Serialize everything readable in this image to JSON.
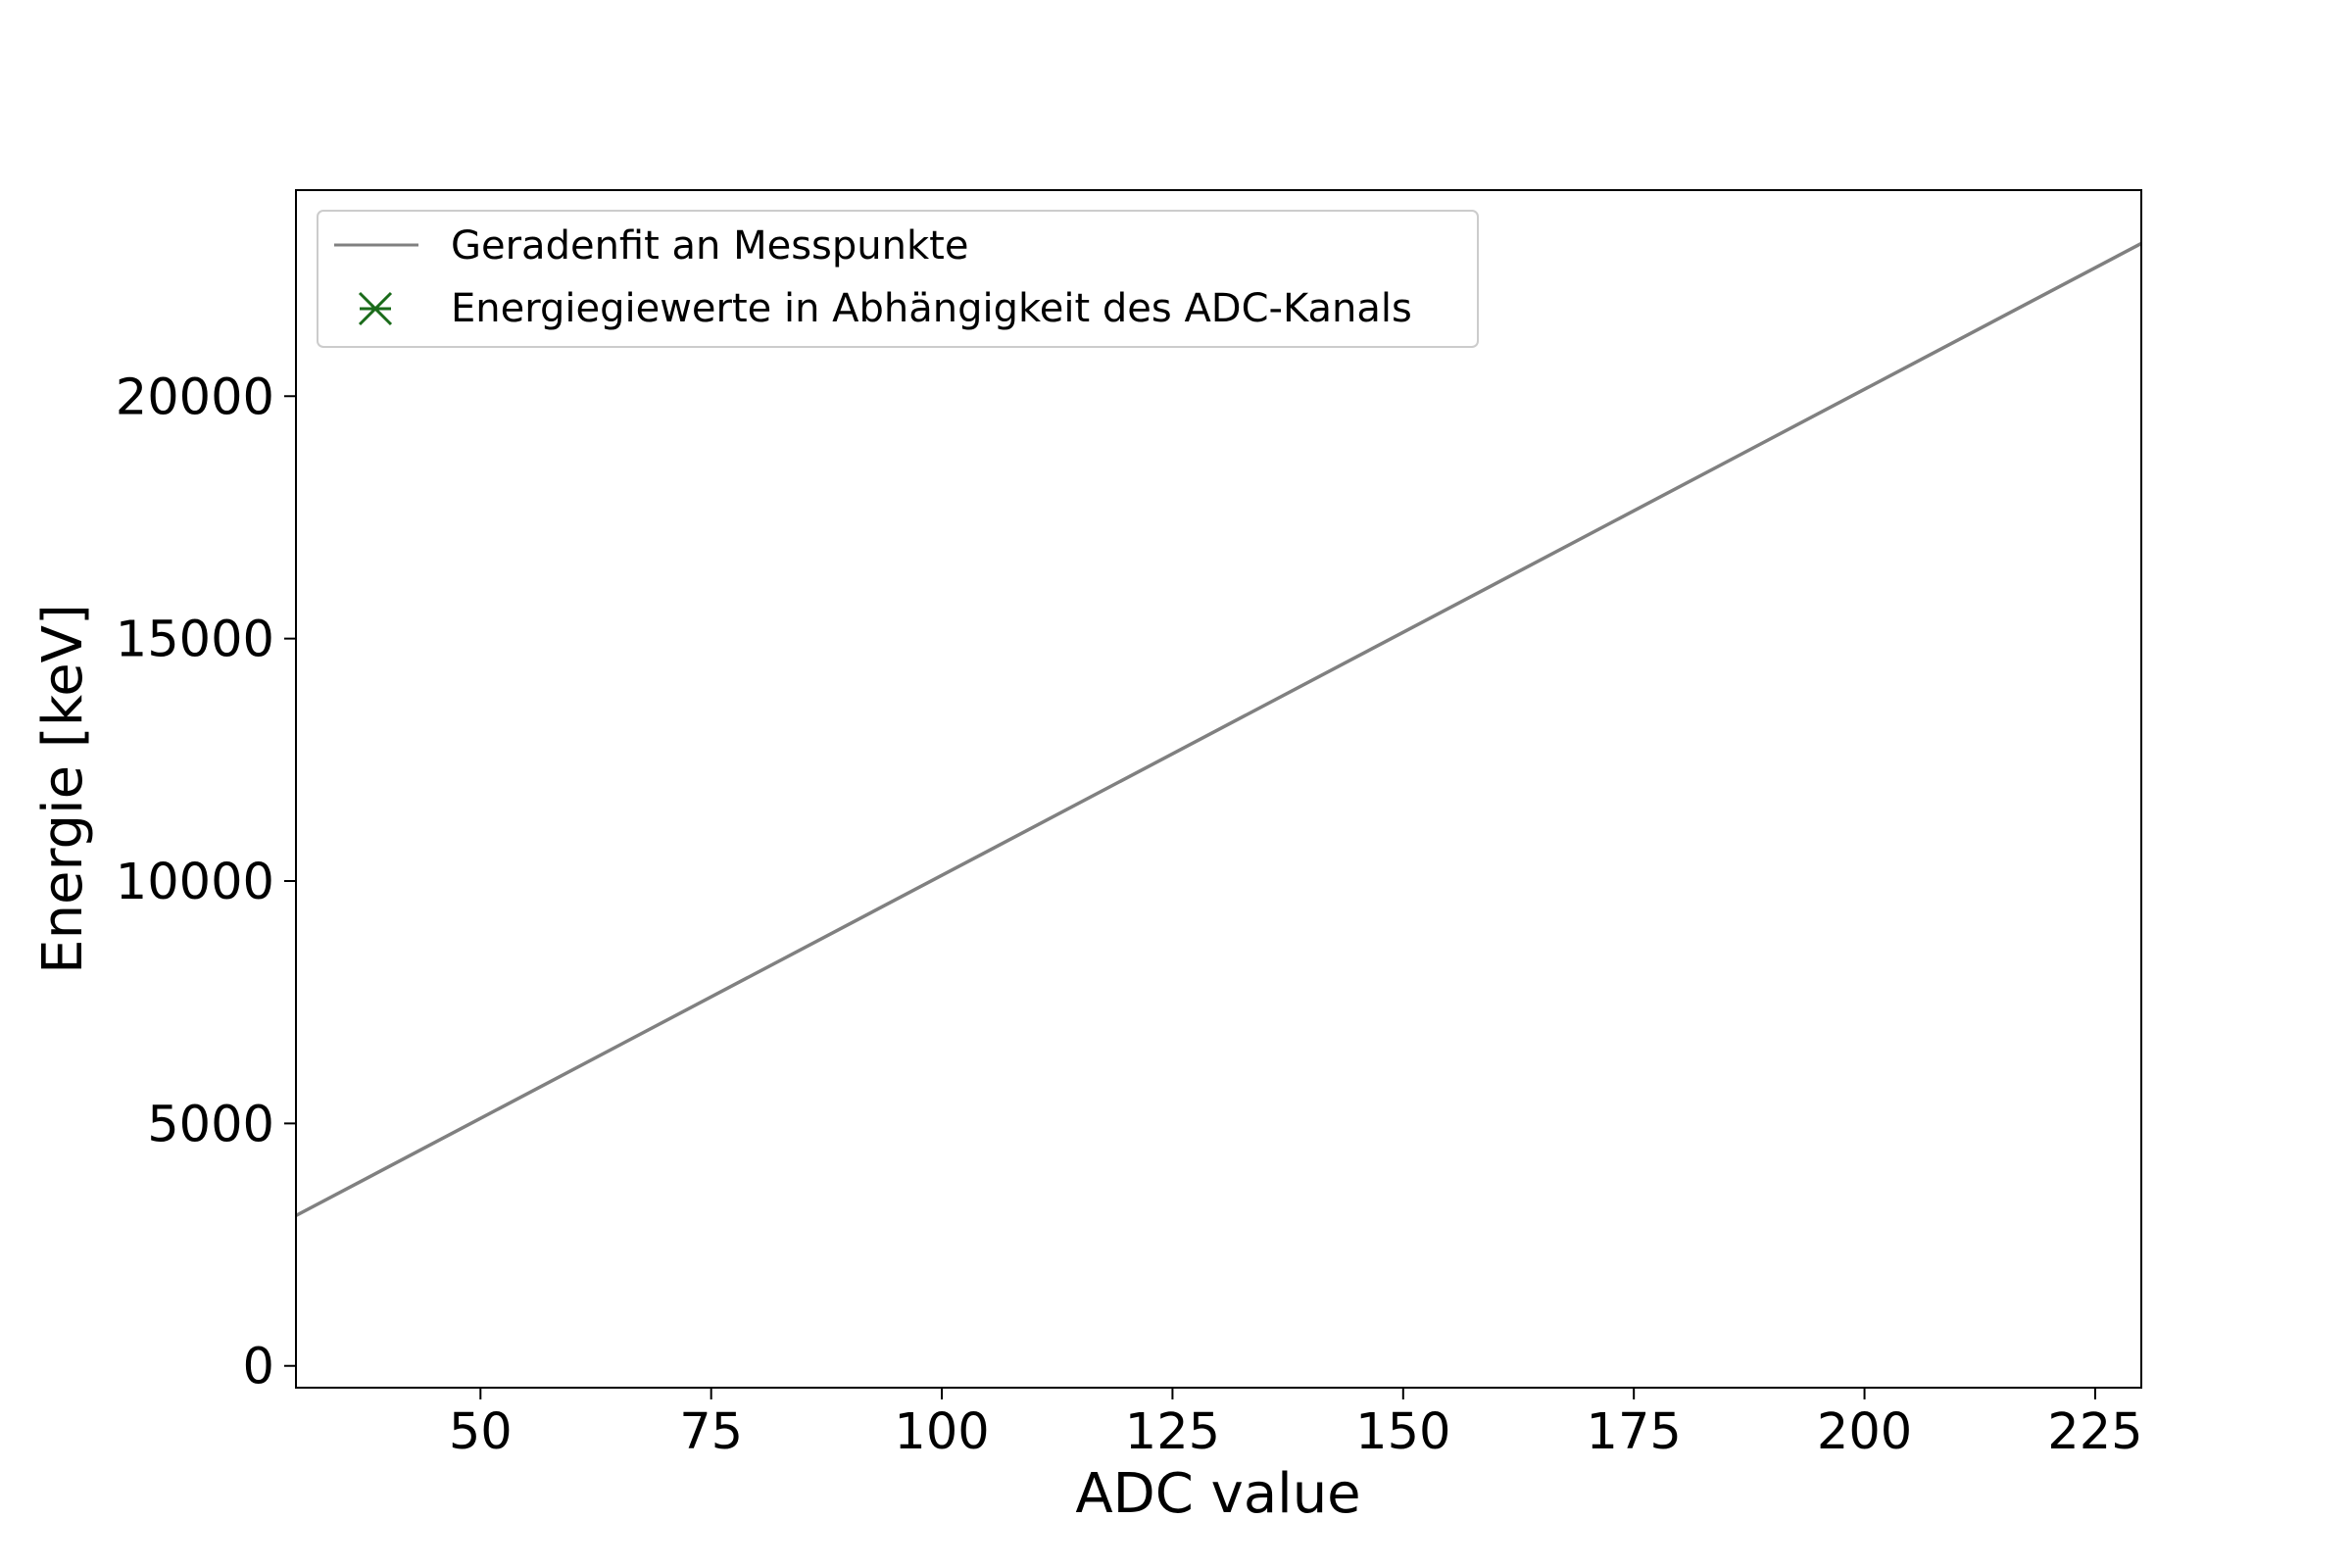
{
  "chart_data": {
    "type": "line",
    "xlabel": "ADC value",
    "ylabel": "Energie [keV]",
    "xlim": [
      30,
      230
    ],
    "ylim": [
      -450,
      24250
    ],
    "xticks": [
      50,
      75,
      100,
      125,
      150,
      175,
      200,
      225
    ],
    "yticks": [
      0,
      5000,
      10000,
      15000,
      20000
    ],
    "grid": false,
    "legend_position": "top-left",
    "series": [
      {
        "name": "Geradenfit an Messpunkte",
        "kind": "line",
        "color": "#808080",
        "x": [
          30,
          230
        ],
        "y": [
          3100,
          23150
        ]
      },
      {
        "name": "Energiegiewerte in Abhängigkeit des ADC-Kanals",
        "kind": "scatter",
        "marker": "x-cross",
        "color": "#1a6b1a",
        "x": [],
        "y": []
      }
    ]
  }
}
